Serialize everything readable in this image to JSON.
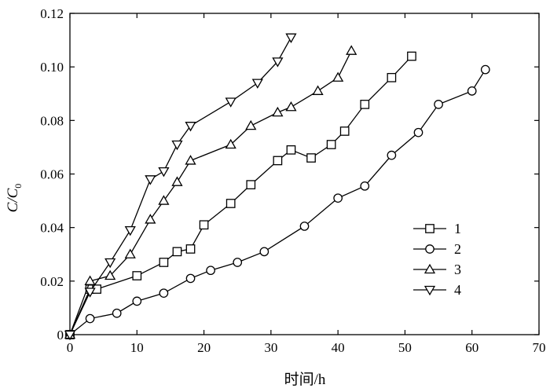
{
  "chart_data": {
    "type": "line",
    "xlabel": "时间/h",
    "ylabel": "C/C0",
    "ylabel_main": "C/C",
    "ylabel_sub": "0",
    "xlim": [
      0,
      70
    ],
    "ylim": [
      0,
      0.12
    ],
    "x_ticks": [
      0,
      10,
      20,
      30,
      40,
      50,
      60,
      70
    ],
    "y_ticks": [
      0,
      0.02,
      0.04,
      0.06,
      0.08,
      0.1,
      0.12
    ],
    "x_tick_labels": [
      "0",
      "10",
      "20",
      "30",
      "40",
      "50",
      "60",
      "70"
    ],
    "y_tick_labels": [
      "0",
      "0.02",
      "0.04",
      "0.06",
      "0.08",
      "0.10",
      "0.12"
    ],
    "grid": false,
    "legend_position": "right",
    "series": [
      {
        "name": "1",
        "marker": "square",
        "x": [
          0,
          3,
          4,
          10,
          14,
          16,
          18,
          20,
          24,
          27,
          31,
          33,
          36,
          39,
          41,
          44,
          48,
          51
        ],
        "y": [
          0,
          0.017,
          0.017,
          0.022,
          0.027,
          0.031,
          0.032,
          0.041,
          0.049,
          0.056,
          0.065,
          0.069,
          0.066,
          0.071,
          0.076,
          0.086,
          0.096,
          0.104
        ]
      },
      {
        "name": "2",
        "marker": "circle",
        "x": [
          0,
          3,
          7,
          10,
          14,
          18,
          21,
          25,
          29,
          35,
          40,
          44,
          48,
          52,
          55,
          60,
          62
        ],
        "y": [
          0,
          0.006,
          0.008,
          0.0125,
          0.0155,
          0.021,
          0.024,
          0.027,
          0.031,
          0.0405,
          0.051,
          0.0555,
          0.067,
          0.0755,
          0.086,
          0.091,
          0.099
        ]
      },
      {
        "name": "3",
        "marker": "triangle-up",
        "x": [
          0,
          3,
          6,
          9,
          12,
          14,
          16,
          18,
          24,
          27,
          31,
          33,
          37,
          40,
          42
        ],
        "y": [
          0,
          0.02,
          0.022,
          0.03,
          0.043,
          0.05,
          0.057,
          0.065,
          0.071,
          0.078,
          0.083,
          0.085,
          0.091,
          0.096,
          0.106
        ]
      },
      {
        "name": "4",
        "marker": "triangle-down",
        "x": [
          0,
          3,
          6,
          9,
          12,
          14,
          16,
          18,
          24,
          28,
          31,
          33
        ],
        "y": [
          0,
          0.016,
          0.027,
          0.039,
          0.058,
          0.061,
          0.071,
          0.078,
          0.087,
          0.094,
          0.102,
          0.111
        ]
      }
    ]
  }
}
